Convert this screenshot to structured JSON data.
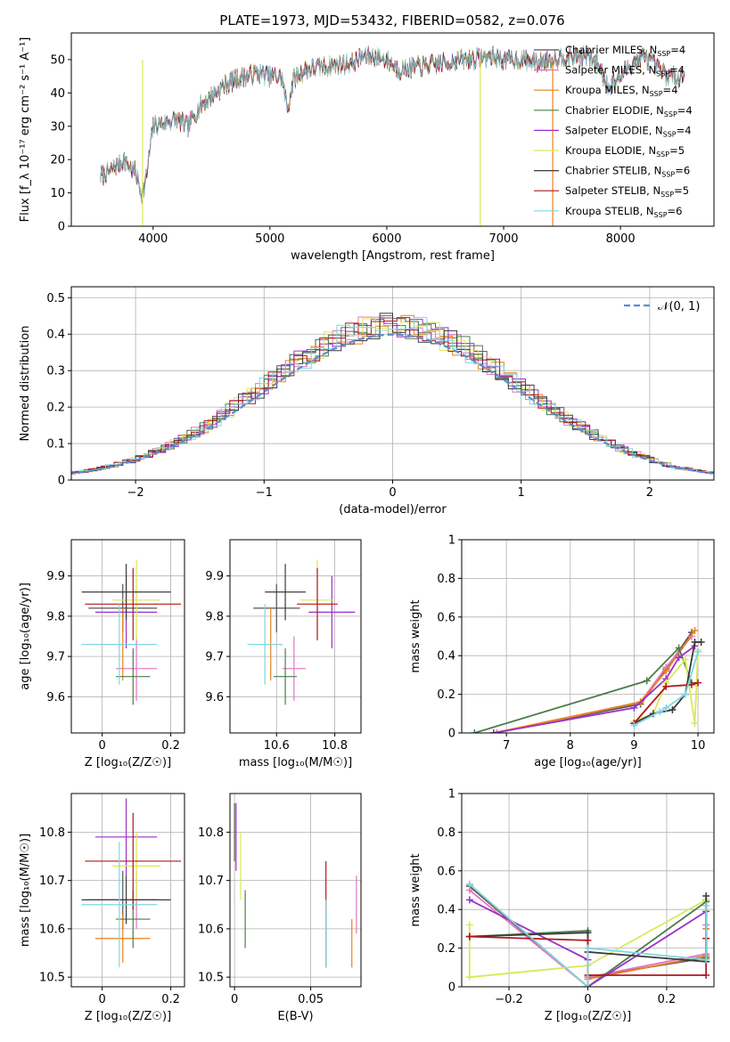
{
  "figure": {
    "title": "PLATE=1973, MJD=53432, FIBERID=0582, z=0.076",
    "models": [
      {
        "name": "Chabrier MILES",
        "nssp": "4",
        "color": "#555555"
      },
      {
        "name": "Salpeter MILES",
        "nssp": "4",
        "color": "#e377c2"
      },
      {
        "name": "Kroupa MILES",
        "nssp": "4",
        "color": "#e8821e"
      },
      {
        "name": "Chabrier ELODIE",
        "nssp": "4",
        "color": "#4b7d4b"
      },
      {
        "name": "Salpeter ELODIE",
        "nssp": "4",
        "color": "#9b30c8"
      },
      {
        "name": "Kroupa ELODIE",
        "nssp": "5",
        "color": "#dbe85a"
      },
      {
        "name": "Chabrier STELIB",
        "nssp": "6",
        "color": "#3a3a3a"
      },
      {
        "name": "Salpeter STELIB",
        "nssp": "5",
        "color": "#b0181c"
      },
      {
        "name": "Kroupa STELIB",
        "nssp": "6",
        "color": "#7fd6e0"
      }
    ],
    "normal_label": "𝒩(0, 1)",
    "normal_color": "#5b8bd9"
  },
  "chart_data": [
    {
      "id": "spectrum",
      "type": "line",
      "xlabel": "wavelength [Angstrom, rest frame]",
      "ylabel": "Flux [f_λ 10⁻¹⁷ erg cm⁻² s⁻¹ A⁻¹]",
      "xlim": [
        3300,
        8800
      ],
      "ylim": [
        0,
        58
      ],
      "xticks": [
        4000,
        5000,
        6000,
        7000,
        8000
      ],
      "yticks": [
        0,
        10,
        20,
        30,
        40,
        50
      ],
      "grid": false,
      "legend": "upper right",
      "anchors": [
        [
          3550,
          15
        ],
        [
          3650,
          17
        ],
        [
          3750,
          20
        ],
        [
          3850,
          16
        ],
        [
          3900,
          10
        ],
        [
          3930,
          12
        ],
        [
          3970,
          22
        ],
        [
          4000,
          30
        ],
        [
          4100,
          31
        ],
        [
          4200,
          32
        ],
        [
          4300,
          30
        ],
        [
          4400,
          36
        ],
        [
          4500,
          39
        ],
        [
          4600,
          42
        ],
        [
          4700,
          44
        ],
        [
          4800,
          45
        ],
        [
          4900,
          46
        ],
        [
          5000,
          45
        ],
        [
          5100,
          45
        ],
        [
          5150,
          35
        ],
        [
          5200,
          44
        ],
        [
          5300,
          47
        ],
        [
          5500,
          48
        ],
        [
          5700,
          49
        ],
        [
          5800,
          51
        ],
        [
          5900,
          51
        ],
        [
          6000,
          50
        ],
        [
          6100,
          47
        ],
        [
          6300,
          48
        ],
        [
          6500,
          49
        ],
        [
          6600,
          50
        ],
        [
          6700,
          50
        ],
        [
          6900,
          51
        ],
        [
          7000,
          50
        ],
        [
          7150,
          50
        ],
        [
          7300,
          49
        ],
        [
          7500,
          51
        ],
        [
          7700,
          51
        ],
        [
          7800,
          49
        ],
        [
          7900,
          42
        ],
        [
          8000,
          45
        ],
        [
          8100,
          49
        ],
        [
          8200,
          51
        ],
        [
          8300,
          48
        ],
        [
          8400,
          45
        ],
        [
          8550,
          45
        ]
      ]
    },
    {
      "id": "residuals",
      "type": "histogram",
      "xlabel": "(data-model)/error",
      "ylabel": "Normed distribution",
      "xlim": [
        -2.5,
        2.5
      ],
      "ylim": [
        0,
        0.53
      ],
      "xticks": [
        -2,
        -1,
        0,
        1,
        2
      ],
      "yticks": [
        0.0,
        0.1,
        0.2,
        0.3,
        0.4,
        0.5
      ],
      "grid": true,
      "legend": "upper right",
      "bin_width": 0.1,
      "normal_mean": 0,
      "normal_sigma": 1
    },
    {
      "id": "age_vs_Z",
      "type": "scatter",
      "xlabel": "Z [log₁₀(Z/Z☉)]",
      "ylabel": "age  [log₁₀(age/yr)]",
      "xlim": [
        -0.09,
        0.24
      ],
      "ylim": [
        9.51,
        9.99
      ],
      "xticks": [
        0.0,
        0.2
      ],
      "yticks": [
        9.6,
        9.7,
        9.8,
        9.9
      ],
      "grid": true,
      "points": [
        {
          "x": 0.06,
          "xerr": 0.1,
          "y": 9.82,
          "yerr": 0.06
        },
        {
          "x": 0.1,
          "xerr": 0.06,
          "y": 9.67,
          "yerr": 0.08
        },
        {
          "x": 0.06,
          "xerr": 0.08,
          "y": 9.73,
          "yerr": 0.09
        },
        {
          "x": 0.09,
          "xerr": 0.05,
          "y": 9.65,
          "yerr": 0.07
        },
        {
          "x": 0.07,
          "xerr": 0.09,
          "y": 9.81,
          "yerr": 0.09
        },
        {
          "x": 0.1,
          "xerr": 0.07,
          "y": 9.84,
          "yerr": 0.1
        },
        {
          "x": 0.07,
          "xerr": 0.13,
          "y": 9.86,
          "yerr": 0.07
        },
        {
          "x": 0.09,
          "xerr": 0.14,
          "y": 9.83,
          "yerr": 0.09
        },
        {
          "x": 0.05,
          "xerr": 0.11,
          "y": 9.73,
          "yerr": 0.1
        }
      ]
    },
    {
      "id": "age_vs_mass",
      "type": "scatter",
      "xlabel": "mass [log₁₀(M/M☉)]",
      "ylabel": "",
      "xlim": [
        10.44,
        10.89
      ],
      "ylim": [
        9.51,
        9.99
      ],
      "xticks": [
        10.6,
        10.8
      ],
      "yticks": [
        9.6,
        9.7,
        9.8,
        9.9
      ],
      "grid": true,
      "points": [
        {
          "x": 10.6,
          "xerr": 0.08,
          "y": 9.82,
          "yerr": 0.06
        },
        {
          "x": 10.66,
          "xerr": 0.04,
          "y": 9.67,
          "yerr": 0.08
        },
        {
          "x": 10.58,
          "xerr": 0.04,
          "y": 9.73,
          "yerr": 0.09
        },
        {
          "x": 10.63,
          "xerr": 0.04,
          "y": 9.65,
          "yerr": 0.07
        },
        {
          "x": 10.79,
          "xerr": 0.08,
          "y": 9.81,
          "yerr": 0.09
        },
        {
          "x": 10.74,
          "xerr": 0.06,
          "y": 9.84,
          "yerr": 0.1
        },
        {
          "x": 10.63,
          "xerr": 0.07,
          "y": 9.86,
          "yerr": 0.07
        },
        {
          "x": 10.74,
          "xerr": 0.07,
          "y": 9.83,
          "yerr": 0.09
        },
        {
          "x": 10.56,
          "xerr": 0.06,
          "y": 9.73,
          "yerr": 0.1
        }
      ]
    },
    {
      "id": "weight_vs_age",
      "type": "line",
      "xlabel": "age  [log₁₀(age/yr)]",
      "ylabel": "mass weight",
      "xlim": [
        6.3,
        10.25
      ],
      "ylim": [
        0,
        1
      ],
      "xticks": [
        7,
        8,
        9,
        10
      ],
      "yticks": [
        0.0,
        0.2,
        0.4,
        0.6,
        0.8,
        1.0
      ],
      "grid": true,
      "series": [
        {
          "x": [
            6.8,
            9.1,
            9.5,
            9.9
          ],
          "y": [
            0.0,
            0.15,
            0.33,
            0.52
          ]
        },
        {
          "x": [
            6.85,
            9.1,
            9.5,
            9.9
          ],
          "y": [
            0.0,
            0.16,
            0.34,
            0.5
          ]
        },
        {
          "x": [
            6.8,
            9.1,
            9.5,
            9.95
          ],
          "y": [
            0.0,
            0.16,
            0.32,
            0.53
          ]
        },
        {
          "x": [
            6.5,
            9.2,
            9.7,
            9.9
          ],
          "y": [
            0.0,
            0.27,
            0.44,
            0.26
          ]
        },
        {
          "x": [
            6.8,
            9.0,
            9.5,
            9.7,
            9.95
          ],
          "y": [
            0.0,
            0.13,
            0.28,
            0.39,
            0.45
          ]
        },
        {
          "x": [
            9.0,
            9.3,
            9.5,
            9.8,
            9.95,
            10.0
          ],
          "y": [
            0.06,
            0.1,
            0.26,
            0.38,
            0.05,
            0.43
          ]
        },
        {
          "x": [
            9.0,
            9.3,
            9.6,
            9.8,
            9.95,
            10.05
          ],
          "y": [
            0.05,
            0.1,
            0.12,
            0.2,
            0.47,
            0.47
          ]
        },
        {
          "x": [
            9.0,
            9.5,
            9.9,
            10.0
          ],
          "y": [
            0.05,
            0.24,
            0.25,
            0.26
          ]
        },
        {
          "x": [
            9.0,
            9.4,
            9.5,
            9.8,
            10.0
          ],
          "y": [
            0.04,
            0.11,
            0.13,
            0.2,
            0.42
          ]
        }
      ]
    },
    {
      "id": "mass_vs_Z",
      "type": "scatter",
      "xlabel": "Z [log₁₀(Z/Z☉)]",
      "ylabel": "mass [log₁₀(M/M☉)]",
      "xlim": [
        -0.09,
        0.24
      ],
      "ylim": [
        10.48,
        10.88
      ],
      "xticks": [
        0.0,
        0.2
      ],
      "yticks": [
        10.5,
        10.6,
        10.7,
        10.8
      ],
      "grid": true,
      "points": [
        {
          "x": 0.06,
          "xerr": 0.1,
          "y": 10.66,
          "yerr": 0.06
        },
        {
          "x": 0.1,
          "xerr": 0.06,
          "y": 10.66,
          "yerr": 0.06
        },
        {
          "x": 0.06,
          "xerr": 0.08,
          "y": 10.58,
          "yerr": 0.05
        },
        {
          "x": 0.09,
          "xerr": 0.05,
          "y": 10.62,
          "yerr": 0.06
        },
        {
          "x": 0.07,
          "xerr": 0.09,
          "y": 10.79,
          "yerr": 0.08
        },
        {
          "x": 0.1,
          "xerr": 0.07,
          "y": 10.73,
          "yerr": 0.07
        },
        {
          "x": 0.07,
          "xerr": 0.13,
          "y": 10.66,
          "yerr": 0.05
        },
        {
          "x": 0.09,
          "xerr": 0.14,
          "y": 10.74,
          "yerr": 0.1
        },
        {
          "x": 0.05,
          "xerr": 0.11,
          "y": 10.65,
          "yerr": 0.13
        }
      ]
    },
    {
      "id": "mass_vs_ebv",
      "type": "scatter",
      "xlabel": "E(B-V)",
      "ylabel": "",
      "xlim": [
        -0.003,
        0.083
      ],
      "ylim": [
        10.48,
        10.88
      ],
      "xticks": [
        0.0,
        0.05
      ],
      "yticks": [
        10.5,
        10.6,
        10.7,
        10.8
      ],
      "grid": true,
      "points": [
        {
          "x": 0.0,
          "y": 10.8,
          "yerr": 0.06
        },
        {
          "x": 0.08,
          "y": 10.65,
          "yerr": 0.06
        },
        {
          "x": 0.077,
          "y": 10.57,
          "yerr": 0.05
        },
        {
          "x": 0.007,
          "y": 10.62,
          "yerr": 0.06
        },
        {
          "x": 0.001,
          "y": 10.79,
          "yerr": 0.07
        },
        {
          "x": 0.004,
          "y": 10.73,
          "yerr": 0.07
        },
        {
          "x": 0.06,
          "y": 10.59,
          "yerr": 0.07
        },
        {
          "x": 0.06,
          "y": 10.7,
          "yerr": 0.04
        },
        {
          "x": 0.06,
          "y": 10.59,
          "yerr": 0.07
        }
      ]
    },
    {
      "id": "weight_vs_Z",
      "type": "line",
      "xlabel": "Z [log₁₀(Z/Z☉)]",
      "ylabel": "mass weight",
      "xlim": [
        -0.32,
        0.32
      ],
      "ylim": [
        0,
        1
      ],
      "xticks": [
        -0.2,
        0.0,
        0.2
      ],
      "yticks": [
        0.0,
        0.2,
        0.4,
        0.6,
        0.8,
        1.0
      ],
      "grid": true,
      "series": [
        {
          "x": [
            -0.3,
            0.0,
            0.0,
            0.3,
            0.3
          ],
          "y": [
            0.52,
            0.0,
            0.05,
            0.15,
            0.45
          ]
        },
        {
          "x": [
            -0.3,
            0.0,
            0.0,
            0.3,
            0.3
          ],
          "y": [
            0.5,
            0.0,
            0.05,
            0.17,
            0.32
          ]
        },
        {
          "x": [
            -0.3,
            0.0,
            0.0,
            0.3,
            0.3
          ],
          "y": [
            0.53,
            0.0,
            0.04,
            0.16,
            0.3
          ]
        },
        {
          "x": [
            -0.3,
            0.0,
            0.0,
            0.3,
            0.3
          ],
          "y": [
            0.26,
            0.29,
            0.0,
            0.44,
            0.15
          ]
        },
        {
          "x": [
            -0.3,
            0.0,
            0.0,
            0.3,
            0.3
          ],
          "y": [
            0.45,
            0.14,
            0.0,
            0.39,
            0.13
          ]
        },
        {
          "x": [
            -0.3,
            -0.3,
            0.0,
            0.3,
            0.3
          ],
          "y": [
            0.32,
            0.05,
            0.11,
            0.45,
            0.4
          ]
        },
        {
          "x": [
            -0.3,
            0.0,
            0.0,
            0.3,
            0.3
          ],
          "y": [
            0.26,
            0.28,
            0.18,
            0.13,
            0.47
          ]
        },
        {
          "x": [
            -0.3,
            0.0,
            0.0,
            0.3,
            0.3
          ],
          "y": [
            0.26,
            0.24,
            0.06,
            0.06,
            0.25
          ]
        },
        {
          "x": [
            -0.3,
            0.0,
            0.0,
            0.3,
            0.3
          ],
          "y": [
            0.53,
            0.0,
            0.2,
            0.14,
            0.42
          ]
        }
      ]
    }
  ]
}
